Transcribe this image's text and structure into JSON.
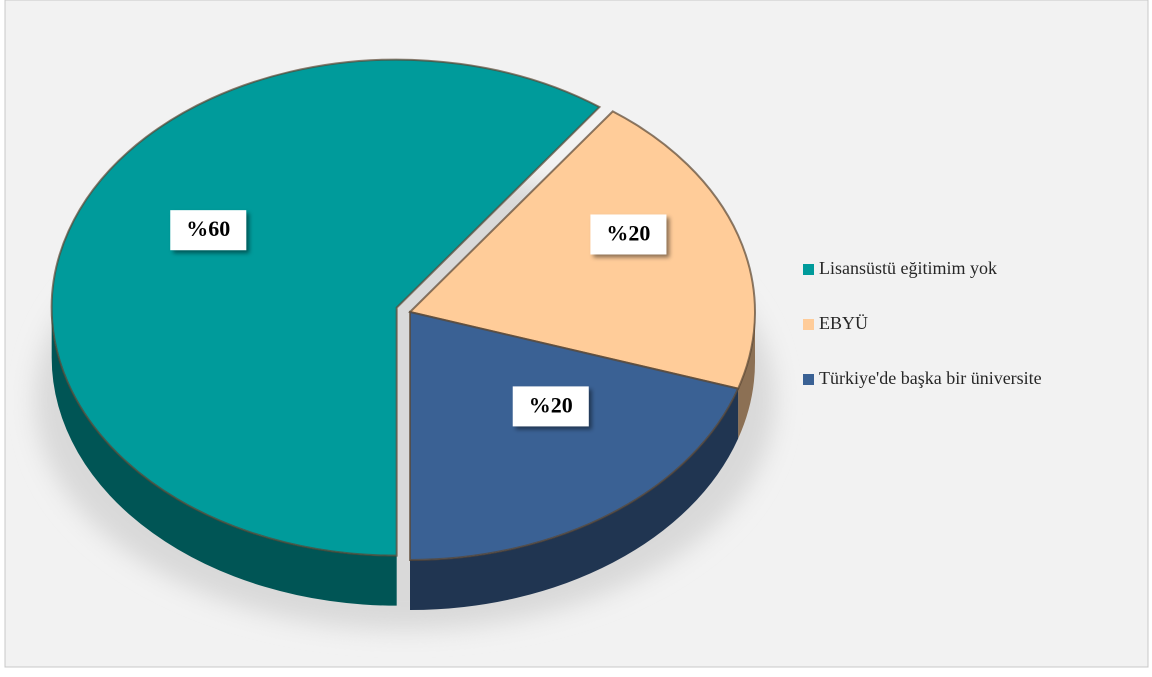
{
  "chart_data": {
    "type": "pie",
    "categories": [
      "Lisansüstü eğitimim yok",
      "EBYÜ",
      "Türkiye'de başka bir üniversite"
    ],
    "values": [
      60,
      20,
      20
    ],
    "value_labels": [
      "%60",
      "%20",
      "%20"
    ],
    "colors": [
      "#009b9b",
      "#ffcc99",
      "#3a6194"
    ],
    "legend": "right"
  }
}
